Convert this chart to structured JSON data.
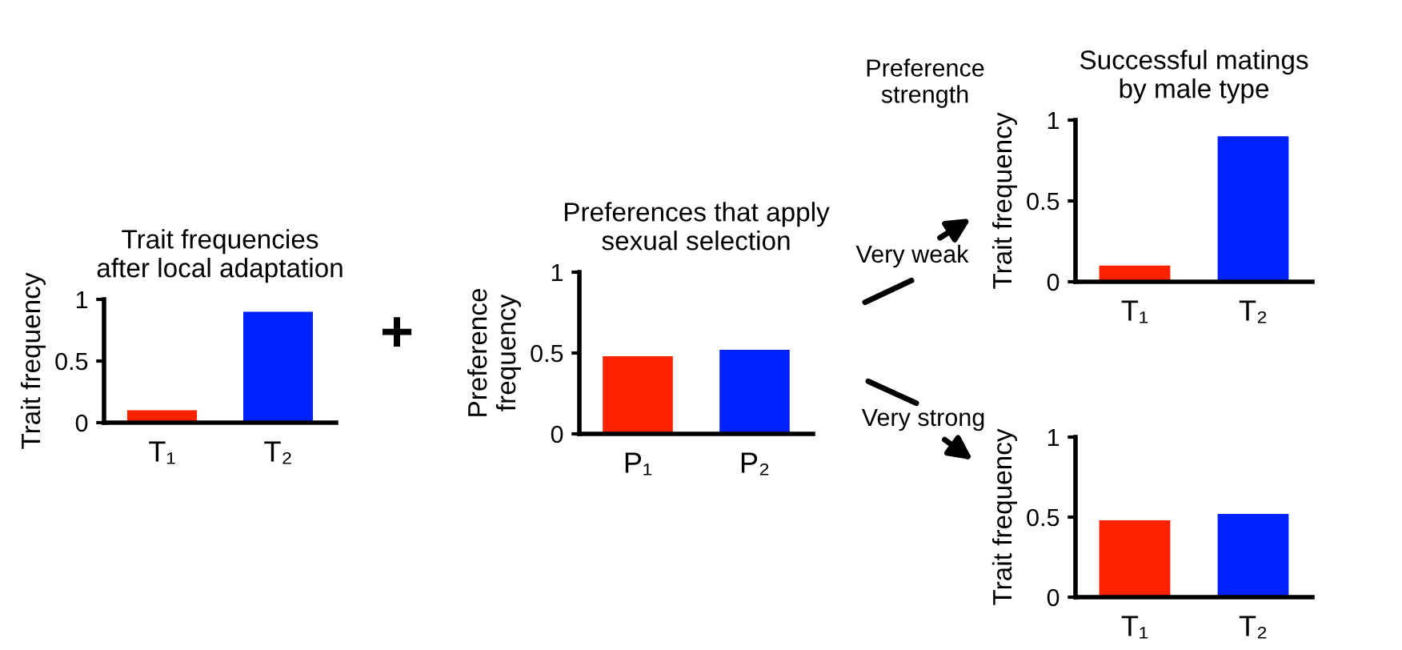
{
  "chart_data": [
    {
      "type": "bar",
      "title": "Trait frequencies\nafter local adaptation",
      "ylabel": "Trait frequency",
      "categories": [
        "T₁",
        "T₂"
      ],
      "values": [
        0.1,
        0.9
      ],
      "colors": [
        "#ff2200",
        "#0022ff"
      ],
      "ylim": [
        0,
        1
      ],
      "yticks": [
        0,
        0.5,
        1
      ],
      "grid": false
    },
    {
      "type": "bar",
      "title": "Preferences that apply\nsexual selection",
      "ylabel": "Preference\nfrequency",
      "categories": [
        "P₁",
        "P₂"
      ],
      "values": [
        0.48,
        0.52
      ],
      "colors": [
        "#ff2200",
        "#0022ff"
      ],
      "ylim": [
        0,
        1
      ],
      "yticks": [
        0,
        0.5,
        1
      ],
      "grid": false,
      "annotations": [
        "+"
      ]
    },
    {
      "type": "bar",
      "title": "Successful matings\nby male type",
      "ylabel": "Trait frequency",
      "categories": [
        "T₁",
        "T₂"
      ],
      "values": [
        0.1,
        0.9
      ],
      "colors": [
        "#ff2200",
        "#0022ff"
      ],
      "ylim": [
        0,
        1
      ],
      "yticks": [
        0,
        0.5,
        1
      ],
      "grid": false,
      "annotations": [
        "Preference\nstrength",
        "Very weak"
      ]
    },
    {
      "type": "bar",
      "ylabel": "Trait frequency",
      "categories": [
        "T₁",
        "T₂"
      ],
      "values": [
        0.48,
        0.52
      ],
      "colors": [
        "#ff2200",
        "#0022ff"
      ],
      "ylim": [
        0,
        1
      ],
      "yticks": [
        0,
        0.5,
        1
      ],
      "grid": false,
      "annotations": [
        "Very strong"
      ]
    }
  ]
}
